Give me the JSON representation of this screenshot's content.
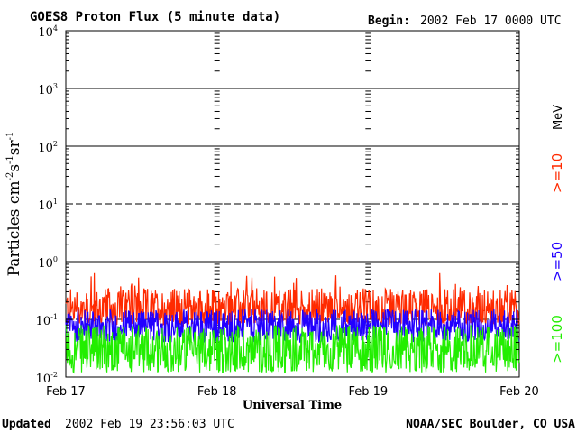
{
  "chart_data": {
    "type": "line",
    "title": "GOES8 Proton Flux (5 minute data)",
    "begin_label": "Begin:",
    "begin_value": "2002 Feb 17 0000 UTC",
    "ylabel": "Particles cm",
    "ylabel_sup1": "-2",
    "ylabel_mid1": "s",
    "ylabel_sup2": "-1",
    "ylabel_mid2": "sr",
    "ylabel_sup3": "-1",
    "xlabel": "Universal Time",
    "x_ticks": [
      "Feb 17",
      "Feb 18",
      "Feb 19",
      "Feb 20"
    ],
    "y_scale": "log",
    "ylim": [
      0.01,
      10000
    ],
    "xlim_days": [
      0,
      3
    ],
    "y_ticks": [
      {
        "base": "10",
        "exp": "-2"
      },
      {
        "base": "10",
        "exp": "-1"
      },
      {
        "base": "10",
        "exp": "0"
      },
      {
        "base": "10",
        "exp": "1"
      },
      {
        "base": "10",
        "exp": "2"
      },
      {
        "base": "10",
        "exp": "3"
      },
      {
        "base": "10",
        "exp": "4"
      }
    ],
    "unit_label": "MeV",
    "series": [
      {
        "name": ">=10",
        "color": "#ff2a00",
        "typical_range": [
          0.08,
          0.35
        ]
      },
      {
        "name": ">=50",
        "color": "#2200ff",
        "typical_range": [
          0.04,
          0.15
        ]
      },
      {
        "name": ">=100",
        "color": "#22ee00",
        "typical_range": [
          0.012,
          0.08
        ]
      }
    ]
  },
  "footer": {
    "updated_label": "Updated",
    "updated_value": "2002 Feb 19 23:56:03 UTC",
    "credit": "NOAA/SEC Boulder, CO USA"
  }
}
